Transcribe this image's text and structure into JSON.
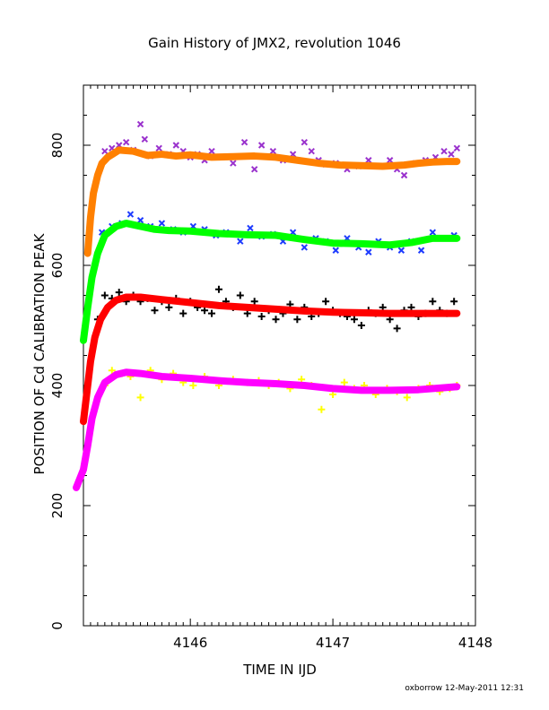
{
  "chart_data": {
    "type": "scatter",
    "title": "Gain History of JMX2, revolution 1046",
    "xlabel": "TIME IN IJD",
    "ylabel": "POSITION OF Cd CALIBRATION PEAK",
    "xlim": [
      4145.25,
      4148.0
    ],
    "ylim": [
      0,
      900
    ],
    "x_ticks": [
      4146,
      4147,
      4148
    ],
    "x_tick_labels": [
      "4146",
      "4147",
      "4148"
    ],
    "y_ticks": [
      0,
      200,
      400,
      600,
      800
    ],
    "y_tick_labels": [
      "0",
      "200",
      "400",
      "600",
      "800"
    ],
    "grid": false,
    "legend": "none",
    "footer": "oxborrow 12-May-2011 12:31",
    "series": [
      {
        "color": "#9a32cd",
        "marker": "x",
        "x": [
          4145.4,
          4145.45,
          4145.5,
          4145.55,
          4145.6,
          4145.65,
          4145.68,
          4145.72,
          4145.78,
          4145.85,
          4145.9,
          4145.95,
          4146.0,
          4146.05,
          4146.1,
          4146.15,
          4146.22,
          4146.3,
          4146.38,
          4146.45,
          4146.5,
          4146.58,
          4146.65,
          4146.72,
          4146.8,
          4146.85,
          4146.9,
          4146.95,
          4147.02,
          4147.1,
          4147.18,
          4147.25,
          4147.32,
          4147.4,
          4147.45,
          4147.5,
          4147.58,
          4147.65,
          4147.72,
          4147.78,
          4147.83,
          4147.87
        ],
        "y": [
          790,
          795,
          800,
          805,
          792,
          835,
          810,
          782,
          795,
          785,
          800,
          790,
          780,
          785,
          775,
          790,
          780,
          770,
          805,
          760,
          800,
          790,
          775,
          785,
          805,
          790,
          775,
          768,
          770,
          760,
          765,
          775,
          765,
          775,
          760,
          750,
          770,
          775,
          780,
          790,
          785,
          795
        ]
      },
      {
        "color": "#ff8000",
        "marker": "line",
        "x": [
          4145.28,
          4145.3,
          4145.32,
          4145.35,
          4145.38,
          4145.42,
          4145.5,
          4145.6,
          4145.7,
          4145.8,
          4145.9,
          4146.0,
          4146.15,
          4146.3,
          4146.45,
          4146.6,
          4146.75,
          4146.9,
          4147.05,
          4147.2,
          4147.35,
          4147.5,
          4147.6,
          4147.7,
          4147.8,
          4147.87
        ],
        "y": [
          620,
          680,
          720,
          750,
          770,
          780,
          792,
          790,
          783,
          785,
          782,
          784,
          780,
          781,
          782,
          780,
          775,
          770,
          767,
          766,
          765,
          767,
          770,
          772,
          773,
          773
        ]
      },
      {
        "color": "#1e3cff",
        "marker": "x",
        "x": [
          4145.38,
          4145.45,
          4145.52,
          4145.58,
          4145.65,
          4145.72,
          4145.8,
          4145.88,
          4145.95,
          4146.02,
          4146.1,
          4146.18,
          4146.25,
          4146.35,
          4146.42,
          4146.5,
          4146.58,
          4146.65,
          4146.72,
          4146.8,
          4146.88,
          4146.95,
          4147.02,
          4147.1,
          4147.18,
          4147.25,
          4147.32,
          4147.4,
          4147.48,
          4147.55,
          4147.62,
          4147.7,
          4147.78,
          4147.85
        ],
        "y": [
          655,
          665,
          670,
          685,
          675,
          665,
          670,
          660,
          655,
          665,
          660,
          650,
          655,
          640,
          662,
          648,
          652,
          640,
          655,
          630,
          645,
          640,
          625,
          645,
          630,
          622,
          640,
          630,
          625,
          640,
          625,
          655,
          645,
          650
        ]
      },
      {
        "color": "#00ff00",
        "marker": "line",
        "x": [
          4145.25,
          4145.28,
          4145.31,
          4145.35,
          4145.4,
          4145.48,
          4145.55,
          4145.65,
          4145.75,
          4145.85,
          4146.0,
          4146.2,
          4146.4,
          4146.6,
          4146.8,
          4147.0,
          4147.2,
          4147.4,
          4147.55,
          4147.7,
          4147.87
        ],
        "y": [
          475,
          530,
          580,
          620,
          650,
          665,
          670,
          665,
          660,
          658,
          657,
          653,
          651,
          650,
          643,
          637,
          636,
          634,
          638,
          645,
          645
        ]
      },
      {
        "color": "#000000",
        "marker": "+",
        "x": [
          4145.35,
          4145.4,
          4145.45,
          4145.5,
          4145.55,
          4145.6,
          4145.65,
          4145.7,
          4145.75,
          4145.8,
          4145.85,
          4145.9,
          4145.95,
          4146.0,
          4146.05,
          4146.1,
          4146.15,
          4146.2,
          4146.25,
          4146.3,
          4146.35,
          4146.4,
          4146.45,
          4146.5,
          4146.55,
          4146.6,
          4146.65,
          4146.7,
          4146.75,
          4146.8,
          4146.85,
          4146.9,
          4146.95,
          4147.0,
          4147.05,
          4147.1,
          4147.15,
          4147.2,
          4147.25,
          4147.3,
          4147.35,
          4147.4,
          4147.45,
          4147.5,
          4147.55,
          4147.6,
          4147.65,
          4147.7,
          4147.75,
          4147.8,
          4147.85
        ],
        "y": [
          510,
          550,
          545,
          555,
          540,
          550,
          540,
          545,
          525,
          540,
          530,
          545,
          520,
          540,
          530,
          525,
          520,
          560,
          540,
          530,
          550,
          520,
          540,
          515,
          525,
          510,
          520,
          535,
          510,
          530,
          515,
          520,
          540,
          525,
          520,
          515,
          510,
          500,
          525,
          520,
          530,
          510,
          495,
          525,
          530,
          515,
          520,
          540,
          525,
          520,
          540
        ]
      },
      {
        "color": "#ff0000",
        "marker": "line",
        "x": [
          4145.25,
          4145.27,
          4145.3,
          4145.33,
          4145.37,
          4145.42,
          4145.48,
          4145.55,
          4145.65,
          4145.8,
          4146.0,
          4146.2,
          4146.4,
          4146.6,
          4146.8,
          4147.0,
          4147.2,
          4147.4,
          4147.6,
          4147.87
        ],
        "y": [
          340,
          380,
          440,
          480,
          510,
          530,
          542,
          547,
          547,
          543,
          538,
          533,
          530,
          527,
          524,
          522,
          521,
          520,
          520,
          520
        ]
      },
      {
        "color": "#ffff00",
        "marker": "+",
        "x": [
          4145.4,
          4145.45,
          4145.52,
          4145.58,
          4145.65,
          4145.72,
          4145.8,
          4145.88,
          4145.95,
          4146.02,
          4146.1,
          4146.2,
          4146.3,
          4146.4,
          4146.48,
          4146.55,
          4146.62,
          4146.7,
          4146.78,
          4146.85,
          4146.92,
          4147.0,
          4147.08,
          4147.15,
          4147.22,
          4147.3,
          4147.38,
          4147.45,
          4147.52,
          4147.6,
          4147.68,
          4147.75,
          4147.82,
          4147.87
        ],
        "y": [
          400,
          425,
          420,
          415,
          380,
          425,
          410,
          420,
          405,
          400,
          415,
          400,
          410,
          405,
          408,
          400,
          405,
          395,
          410,
          400,
          360,
          385,
          405,
          395,
          400,
          385,
          395,
          390,
          380,
          395,
          400,
          390,
          395,
          400
        ]
      },
      {
        "color": "#ff00ff",
        "marker": "line",
        "x": [
          4145.2,
          4145.25,
          4145.28,
          4145.31,
          4145.35,
          4145.4,
          4145.48,
          4145.55,
          4145.65,
          4145.8,
          4146.0,
          4146.2,
          4146.4,
          4146.6,
          4146.8,
          4147.0,
          4147.2,
          4147.4,
          4147.6,
          4147.87
        ],
        "y": [
          230,
          260,
          300,
          345,
          380,
          405,
          418,
          422,
          420,
          415,
          412,
          408,
          405,
          403,
          400,
          395,
          392,
          392,
          393,
          398
        ]
      }
    ]
  }
}
